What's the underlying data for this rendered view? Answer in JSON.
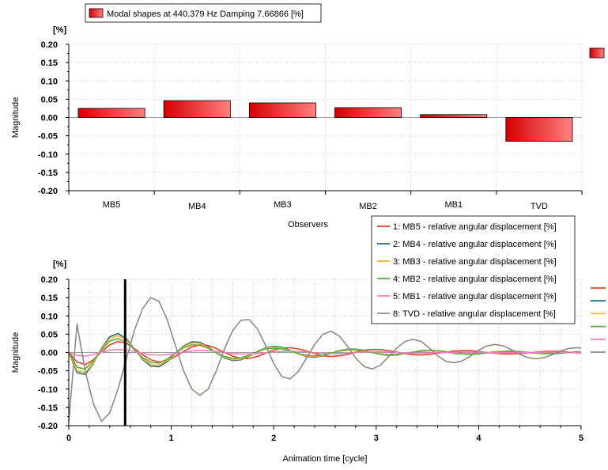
{
  "chart_data": [
    {
      "type": "bar",
      "legend": {
        "label": "Modal shapes at 440.379 Hz Damping 7.66866 [%]",
        "position": "top-left"
      },
      "unit": "[%]",
      "ylabel": "Magnitude",
      "xlabel": "Observers",
      "categories": [
        "MB5",
        "MB4",
        "MB3",
        "MB2",
        "MB1",
        "TVD"
      ],
      "values": [
        0.025,
        0.046,
        0.04,
        0.027,
        0.008,
        -0.065
      ],
      "ylim": [
        -0.2,
        0.2
      ],
      "yticks": [
        0.2,
        0.15,
        0.1,
        0.05,
        0.0,
        -0.05,
        -0.1,
        -0.15,
        -0.2
      ],
      "ytick_labels": [
        "0.20",
        "0.15",
        "0.10",
        "0.05",
        "0.00",
        "-0.05",
        "-0.10",
        "-0.15",
        "-0.20"
      ],
      "grid": true,
      "colors": {
        "bar_dark": "#d40000",
        "bar_light": "#ff8080",
        "bar_edge": "#000000"
      }
    },
    {
      "type": "line",
      "unit": "[%]",
      "ylabel": "Magnitude",
      "xlabel": "Animation time [cycle]",
      "xlim": [
        0,
        5
      ],
      "ylim": [
        -0.2,
        0.2
      ],
      "xticks": [
        0,
        1,
        2,
        3,
        4,
        5
      ],
      "yticks": [
        0.2,
        0.15,
        0.1,
        0.05,
        0.0,
        -0.05,
        -0.1,
        -0.15,
        -0.2
      ],
      "ytick_labels": [
        "0.20",
        "0.15",
        "0.10",
        "0.05",
        "0.00",
        "-0.05",
        "-0.10",
        "-0.15",
        "-0.20"
      ],
      "cursor_x": 0.55,
      "grid": true,
      "legend_position": "top-right",
      "x": [
        0,
        0.08,
        0.16,
        0.24,
        0.32,
        0.4,
        0.48,
        0.56,
        0.64,
        0.72,
        0.8,
        0.88,
        0.96,
        1.04,
        1.12,
        1.2,
        1.28,
        1.36,
        1.44,
        1.52,
        1.6,
        1.68,
        1.76,
        1.84,
        1.92,
        2.0,
        2.08,
        2.16,
        2.24,
        2.32,
        2.4,
        2.48,
        2.56,
        2.64,
        2.72,
        2.8,
        2.88,
        2.96,
        3.04,
        3.12,
        3.2,
        3.28,
        3.36,
        3.44,
        3.52,
        3.6,
        3.68,
        3.76,
        3.84,
        3.92,
        4.0,
        4.08,
        4.16,
        4.24,
        4.32,
        4.4,
        4.48,
        4.56,
        4.64,
        4.72,
        4.8,
        4.88,
        4.96,
        5.0
      ],
      "series": [
        {
          "name": "1: MB5 - relative angular displacement [%]",
          "color": "#e8402a",
          "values": [
            0.0,
            -0.026,
            -0.033,
            -0.02,
            0.002,
            0.021,
            0.03,
            0.025,
            0.011,
            -0.006,
            -0.02,
            -0.026,
            -0.022,
            -0.011,
            0.003,
            0.015,
            0.021,
            0.019,
            0.011,
            0.0,
            -0.01,
            -0.016,
            -0.016,
            -0.011,
            -0.002,
            0.007,
            0.012,
            0.013,
            0.01,
            0.004,
            -0.003,
            -0.009,
            -0.011,
            -0.009,
            -0.005,
            0.001,
            0.006,
            0.008,
            0.008,
            0.005,
            0.001,
            -0.003,
            -0.006,
            -0.007,
            -0.005,
            -0.002,
            0.001,
            0.004,
            0.005,
            0.005,
            0.003,
            0.0,
            -0.002,
            -0.004,
            -0.004,
            -0.003,
            -0.001,
            0.001,
            0.003,
            0.003,
            0.003,
            0.001,
            -0.001,
            -0.001
          ]
        },
        {
          "name": "2: MB4 - relative angular displacement [%]",
          "color": "#1f6b80",
          "values": [
            0.0,
            -0.055,
            -0.06,
            -0.03,
            0.012,
            0.043,
            0.052,
            0.038,
            0.01,
            -0.019,
            -0.037,
            -0.039,
            -0.025,
            -0.003,
            0.018,
            0.029,
            0.028,
            0.016,
            -0.001,
            -0.015,
            -0.022,
            -0.02,
            -0.01,
            0.003,
            0.013,
            0.017,
            0.014,
            0.006,
            -0.004,
            -0.011,
            -0.013,
            -0.009,
            -0.002,
            0.005,
            0.009,
            0.009,
            0.006,
            0.0,
            -0.005,
            -0.008,
            -0.007,
            -0.003,
            0.001,
            0.005,
            0.006,
            0.005,
            0.002,
            -0.002,
            -0.004,
            -0.005,
            -0.004,
            -0.001,
            0.002,
            0.003,
            0.004,
            0.002,
            0.0,
            -0.002,
            -0.003,
            -0.003,
            -0.002,
            0.0,
            0.002,
            0.002
          ]
        },
        {
          "name": "3: MB3 - relative angular displacement [%]",
          "color": "#f5b731",
          "values": [
            0.0,
            -0.05,
            -0.055,
            -0.028,
            0.01,
            0.038,
            0.046,
            0.034,
            0.009,
            -0.017,
            -0.033,
            -0.035,
            -0.022,
            -0.003,
            0.016,
            0.026,
            0.025,
            0.014,
            -0.001,
            -0.013,
            -0.02,
            -0.018,
            -0.009,
            0.003,
            0.012,
            0.015,
            0.012,
            0.005,
            -0.004,
            -0.01,
            -0.011,
            -0.008,
            -0.002,
            0.005,
            0.008,
            0.008,
            0.005,
            0.0,
            -0.005,
            -0.007,
            -0.006,
            -0.003,
            0.001,
            0.004,
            0.006,
            0.005,
            0.002,
            -0.001,
            -0.004,
            -0.004,
            -0.003,
            -0.001,
            0.002,
            0.003,
            0.003,
            0.002,
            0.0,
            -0.002,
            -0.003,
            -0.002,
            -0.001,
            0.0,
            0.001,
            0.002
          ]
        },
        {
          "name": "4: MB2 - relative angular displacement [%]",
          "color": "#55ae3a",
          "values": [
            0.0,
            -0.04,
            -0.045,
            -0.023,
            0.008,
            0.031,
            0.038,
            0.028,
            0.008,
            -0.014,
            -0.027,
            -0.029,
            -0.018,
            -0.002,
            0.013,
            0.021,
            0.02,
            0.012,
            -0.001,
            -0.011,
            -0.016,
            -0.015,
            -0.007,
            0.002,
            0.01,
            0.012,
            0.01,
            0.004,
            -0.003,
            -0.008,
            -0.009,
            -0.007,
            -0.002,
            0.004,
            0.007,
            0.007,
            0.004,
            0.0,
            -0.004,
            -0.006,
            -0.005,
            -0.002,
            0.001,
            0.003,
            0.005,
            0.004,
            0.002,
            -0.001,
            -0.003,
            -0.004,
            -0.003,
            -0.001,
            0.001,
            0.002,
            0.003,
            0.002,
            0.0,
            -0.001,
            -0.002,
            -0.002,
            -0.001,
            0.0,
            0.001,
            0.001
          ]
        },
        {
          "name": "5: MB1 - relative angular displacement [%]",
          "color": "#f27eb7",
          "values": [
            0.0,
            -0.008,
            -0.01,
            -0.006,
            0.001,
            0.006,
            0.008,
            0.007,
            0.003,
            -0.002,
            -0.006,
            -0.007,
            -0.006,
            -0.003,
            0.001,
            0.004,
            0.006,
            0.005,
            0.003,
            0.0,
            -0.003,
            -0.004,
            -0.004,
            -0.003,
            -0.001,
            0.002,
            0.003,
            0.004,
            0.003,
            0.001,
            -0.001,
            -0.002,
            -0.003,
            -0.003,
            -0.001,
            0.0,
            0.002,
            0.002,
            0.002,
            0.001,
            0.0,
            -0.001,
            -0.002,
            -0.002,
            -0.001,
            -0.001,
            0.0,
            0.001,
            0.001,
            0.001,
            0.001,
            0.0,
            -0.001,
            -0.001,
            -0.001,
            -0.001,
            0.0,
            0.0,
            0.001,
            0.001,
            0.001,
            0.0,
            0.0,
            0.0
          ]
        },
        {
          "name": "8: TVD - relative angular displacement [%]",
          "color": "#8c8c83",
          "values": [
            -0.19,
            0.078,
            -0.05,
            -0.14,
            -0.188,
            -0.165,
            -0.1,
            -0.02,
            0.06,
            0.12,
            0.15,
            0.14,
            0.09,
            0.02,
            -0.05,
            -0.1,
            -0.117,
            -0.1,
            -0.05,
            0.01,
            0.06,
            0.088,
            0.09,
            0.065,
            0.02,
            -0.03,
            -0.066,
            -0.072,
            -0.052,
            -0.015,
            0.022,
            0.05,
            0.058,
            0.045,
            0.017,
            -0.015,
            -0.038,
            -0.045,
            -0.035,
            -0.012,
            0.012,
            0.03,
            0.036,
            0.03,
            0.012,
            -0.009,
            -0.024,
            -0.028,
            -0.023,
            -0.01,
            0.006,
            0.018,
            0.022,
            0.018,
            0.008,
            -0.005,
            -0.014,
            -0.017,
            -0.014,
            -0.006,
            0.004,
            0.011,
            0.013,
            0.012
          ]
        }
      ]
    }
  ]
}
